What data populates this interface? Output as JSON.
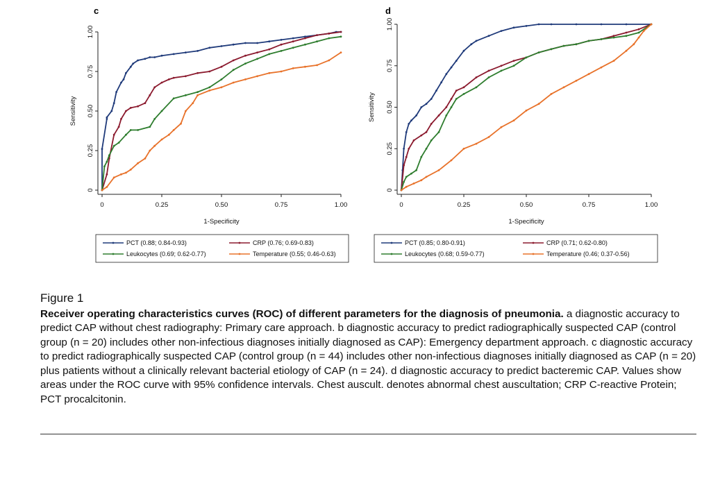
{
  "chart_data": [
    {
      "panel": "c",
      "type": "line",
      "xlabel": "1-Specificity",
      "ylabel": "Sensitivity",
      "xlim": [
        0,
        1
      ],
      "ylim": [
        0,
        1
      ],
      "xticks": [
        "0",
        "0.25",
        "0.50",
        "0.75",
        "1.00"
      ],
      "yticks": [
        "0",
        "0.25",
        "0.50",
        "0.75",
        "1.00"
      ],
      "legend_position": "bottom",
      "series": [
        {
          "name": "PCT (0.88; 0.84-0.93)",
          "color": "#1f3a7a",
          "x": [
            0,
            0,
            0.02,
            0.02,
            0.04,
            0.05,
            0.06,
            0.08,
            0.09,
            0.1,
            0.12,
            0.13,
            0.15,
            0.18,
            0.2,
            0.22,
            0.25,
            0.3,
            0.35,
            0.4,
            0.45,
            0.5,
            0.55,
            0.6,
            0.65,
            0.7,
            0.75,
            0.8,
            0.85,
            0.9,
            0.95,
            0.98,
            1.0
          ],
          "y": [
            0,
            0.26,
            0.45,
            0.46,
            0.5,
            0.55,
            0.62,
            0.68,
            0.7,
            0.74,
            0.78,
            0.8,
            0.82,
            0.83,
            0.84,
            0.84,
            0.85,
            0.86,
            0.87,
            0.88,
            0.9,
            0.91,
            0.92,
            0.93,
            0.93,
            0.94,
            0.95,
            0.96,
            0.97,
            0.98,
            0.99,
            1.0,
            1.0
          ]
        },
        {
          "name": "CRP (0.76; 0.69-0.83)",
          "color": "#8b1a2e",
          "x": [
            0,
            0.02,
            0.03,
            0.05,
            0.07,
            0.08,
            0.1,
            0.12,
            0.15,
            0.18,
            0.2,
            0.22,
            0.25,
            0.28,
            0.3,
            0.35,
            0.4,
            0.45,
            0.5,
            0.55,
            0.6,
            0.65,
            0.7,
            0.75,
            0.8,
            0.85,
            0.9,
            0.95,
            1.0
          ],
          "y": [
            0,
            0.1,
            0.2,
            0.35,
            0.4,
            0.45,
            0.5,
            0.52,
            0.53,
            0.55,
            0.6,
            0.65,
            0.68,
            0.7,
            0.71,
            0.72,
            0.74,
            0.75,
            0.78,
            0.82,
            0.85,
            0.87,
            0.89,
            0.92,
            0.94,
            0.96,
            0.98,
            0.99,
            1.0
          ]
        },
        {
          "name": "Leukocytes (0.69; 0.62-0.77)",
          "color": "#2e7d2e",
          "x": [
            0,
            0.01,
            0.02,
            0.03,
            0.05,
            0.07,
            0.1,
            0.12,
            0.15,
            0.2,
            0.22,
            0.25,
            0.3,
            0.35,
            0.4,
            0.45,
            0.5,
            0.55,
            0.6,
            0.65,
            0.7,
            0.75,
            0.8,
            0.85,
            0.9,
            0.95,
            1.0
          ],
          "y": [
            0,
            0.15,
            0.18,
            0.22,
            0.28,
            0.3,
            0.35,
            0.38,
            0.38,
            0.4,
            0.45,
            0.5,
            0.58,
            0.6,
            0.62,
            0.65,
            0.7,
            0.76,
            0.8,
            0.83,
            0.86,
            0.88,
            0.9,
            0.92,
            0.94,
            0.96,
            0.97
          ]
        },
        {
          "name": "Temperature (0.55; 0.46-0.63)",
          "color": "#e8722a",
          "x": [
            0,
            0.02,
            0.05,
            0.08,
            0.1,
            0.12,
            0.15,
            0.18,
            0.2,
            0.22,
            0.25,
            0.28,
            0.3,
            0.33,
            0.35,
            0.38,
            0.4,
            0.45,
            0.5,
            0.55,
            0.6,
            0.65,
            0.7,
            0.75,
            0.8,
            0.85,
            0.9,
            0.95,
            1.0
          ],
          "y": [
            0,
            0.02,
            0.08,
            0.1,
            0.11,
            0.13,
            0.17,
            0.2,
            0.25,
            0.28,
            0.32,
            0.35,
            0.38,
            0.42,
            0.5,
            0.55,
            0.6,
            0.63,
            0.65,
            0.68,
            0.7,
            0.72,
            0.74,
            0.75,
            0.77,
            0.78,
            0.79,
            0.82,
            0.87
          ]
        }
      ]
    },
    {
      "panel": "d",
      "type": "line",
      "xlabel": "1-Specificity",
      "ylabel": "Sensitivity",
      "xlim": [
        0,
        1
      ],
      "ylim": [
        0,
        1
      ],
      "xticks": [
        "0",
        "0.25",
        "0.50",
        "0.75",
        "1.00"
      ],
      "yticks": [
        "0",
        "0.25",
        "0.50",
        "0.75",
        "1.00"
      ],
      "legend_position": "bottom",
      "series": [
        {
          "name": "PCT (0.85; 0.80-0.91)",
          "color": "#1f3a7a",
          "x": [
            0,
            0.005,
            0.01,
            0.02,
            0.03,
            0.04,
            0.06,
            0.08,
            0.1,
            0.12,
            0.14,
            0.16,
            0.18,
            0.2,
            0.22,
            0.25,
            0.28,
            0.3,
            0.35,
            0.4,
            0.45,
            0.5,
            0.55,
            0.6,
            0.7,
            0.8,
            0.9,
            1.0
          ],
          "y": [
            0,
            0.12,
            0.25,
            0.35,
            0.4,
            0.42,
            0.45,
            0.5,
            0.52,
            0.55,
            0.6,
            0.65,
            0.7,
            0.74,
            0.78,
            0.84,
            0.88,
            0.9,
            0.93,
            0.96,
            0.98,
            0.99,
            1.0,
            1.0,
            1.0,
            1.0,
            1.0,
            1.0
          ]
        },
        {
          "name": "CRP (0.71; 0.62-0.80)",
          "color": "#8b1a2e",
          "x": [
            0,
            0.01,
            0.02,
            0.03,
            0.05,
            0.08,
            0.1,
            0.12,
            0.15,
            0.18,
            0.2,
            0.22,
            0.25,
            0.3,
            0.35,
            0.4,
            0.45,
            0.5,
            0.55,
            0.6,
            0.65,
            0.7,
            0.75,
            0.8,
            0.85,
            0.9,
            0.95,
            1.0
          ],
          "y": [
            0,
            0.15,
            0.2,
            0.25,
            0.3,
            0.33,
            0.35,
            0.4,
            0.45,
            0.5,
            0.55,
            0.6,
            0.62,
            0.68,
            0.72,
            0.75,
            0.78,
            0.8,
            0.83,
            0.85,
            0.87,
            0.88,
            0.9,
            0.91,
            0.93,
            0.95,
            0.97,
            1.0
          ]
        },
        {
          "name": "Leukocytes (0.68; 0.59-0.77)",
          "color": "#2e7d2e",
          "x": [
            0,
            0.01,
            0.02,
            0.04,
            0.06,
            0.08,
            0.1,
            0.12,
            0.15,
            0.18,
            0.2,
            0.22,
            0.25,
            0.3,
            0.35,
            0.4,
            0.45,
            0.5,
            0.55,
            0.6,
            0.65,
            0.7,
            0.75,
            0.8,
            0.85,
            0.9,
            0.95,
            1.0
          ],
          "y": [
            0,
            0.05,
            0.08,
            0.1,
            0.12,
            0.2,
            0.25,
            0.3,
            0.35,
            0.45,
            0.5,
            0.55,
            0.58,
            0.62,
            0.68,
            0.72,
            0.75,
            0.8,
            0.83,
            0.85,
            0.87,
            0.88,
            0.9,
            0.91,
            0.92,
            0.93,
            0.95,
            1.0
          ]
        },
        {
          "name": "Temperature (0.46; 0.37-0.56)",
          "color": "#e8722a",
          "x": [
            0,
            0.02,
            0.05,
            0.08,
            0.1,
            0.15,
            0.2,
            0.25,
            0.3,
            0.35,
            0.4,
            0.45,
            0.5,
            0.55,
            0.6,
            0.65,
            0.7,
            0.75,
            0.8,
            0.85,
            0.9,
            0.93,
            0.95,
            0.97,
            1.0
          ],
          "y": [
            0,
            0.02,
            0.04,
            0.06,
            0.08,
            0.12,
            0.18,
            0.25,
            0.28,
            0.32,
            0.38,
            0.42,
            0.48,
            0.52,
            0.58,
            0.62,
            0.66,
            0.7,
            0.74,
            0.78,
            0.84,
            0.88,
            0.92,
            0.96,
            1.0
          ]
        }
      ]
    }
  ],
  "caption": {
    "label": "Figure 1",
    "title": "Receiver operating characteristics curves (ROC) of different parameters for the diagnosis of pneumonia.",
    "body": " a diagnostic accuracy to predict CAP without chest radiography: Primary care approach. b diagnostic accuracy to predict radiographically suspected CAP (control group (n = 20) includes other non-infectious diagnoses initially diagnosed as CAP): Emergency department approach. c diagnostic accuracy to predict radiographically suspected CAP (control group (n = 44) includes other non-infectious diagnoses initially diagnosed as CAP (n = 20) plus patients without a clinically relevant bacterial etiology of CAP (n = 24). d diagnostic accuracy to predict bacteremic CAP. Values show areas under the ROC curve with 95% confidence intervals. Chest auscult. denotes abnormal chest auscultation; CRP C-reactive Protein; PCT procalcitonin."
  }
}
